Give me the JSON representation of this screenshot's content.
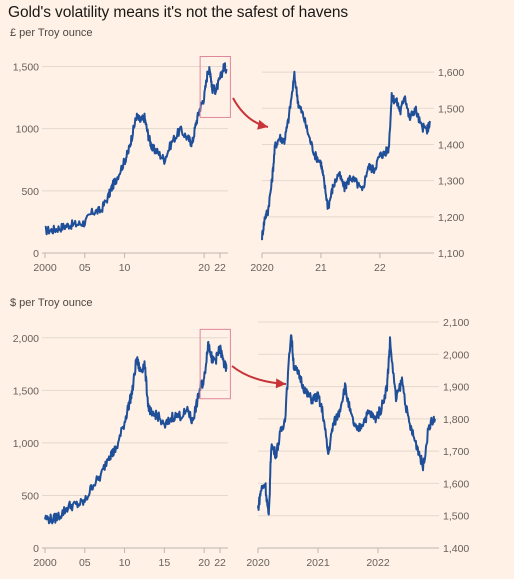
{
  "title": "Gold's volatility means it's not the safest of havens",
  "sections": [
    {
      "unit_label": "£ per Troy ounce"
    },
    {
      "unit_label": "$ per Troy ounce"
    }
  ],
  "colors": {
    "background": "#fff1e5",
    "line": "#1f4f99",
    "highlight_box": "#e0879a",
    "arrow": "#c8343a",
    "grid": "#e3d9cf",
    "axis": "#bfb6ad"
  },
  "chart_data": [
    {
      "type": "line",
      "panel": "top-left",
      "ylim": [
        0,
        1600
      ],
      "yticks": [
        0,
        500,
        1000,
        1500
      ],
      "ytick_labels": [
        "0",
        "500",
        "1000",
        "1,500"
      ],
      "xlim": [
        2000,
        2023
      ],
      "xticks": [
        2000,
        2005,
        2010,
        2020,
        2022
      ],
      "xtick_labels": [
        "2000",
        "05",
        "10",
        "20",
        "22"
      ],
      "highlight": {
        "x": [
          2020,
          2022.8
        ],
        "y": [
          1090,
          1580
        ]
      },
      "series": [
        {
          "x": [
            2000,
            2001,
            2002,
            2003,
            2004,
            2005,
            2006,
            2007,
            2008,
            2008.5,
            2009,
            2010,
            2010.5,
            2011,
            2011.5,
            2012,
            2012.5,
            2013,
            2013.5,
            2014,
            2015,
            2016,
            2017,
            2018,
            2018.5,
            2019,
            2019.5,
            2020,
            2020.5,
            2020.8,
            2021,
            2021.5,
            2022,
            2022.5,
            2022.8
          ],
          "values": [
            180,
            185,
            205,
            225,
            230,
            245,
            330,
            340,
            460,
            540,
            600,
            740,
            820,
            960,
            1100,
            1060,
            1090,
            940,
            840,
            820,
            750,
            900,
            990,
            920,
            880,
            1050,
            1170,
            1250,
            1480,
            1450,
            1320,
            1310,
            1400,
            1500,
            1480
          ]
        }
      ]
    },
    {
      "type": "line",
      "panel": "top-right",
      "ylim": [
        1100,
        1650
      ],
      "yticks": [
        1100,
        1200,
        1300,
        1400,
        1500,
        1600
      ],
      "ytick_labels": [
        "1,100",
        "1,200",
        "1,300",
        "1,400",
        "1,500",
        "1,600"
      ],
      "xlim": [
        2020,
        2022.85
      ],
      "xticks": [
        2020,
        2021,
        2022
      ],
      "xtick_labels": [
        "2020",
        "21",
        "22"
      ],
      "series": [
        {
          "x": [
            2020,
            2020.05,
            2020.1,
            2020.17,
            2020.22,
            2020.3,
            2020.38,
            2020.45,
            2020.55,
            2020.62,
            2020.7,
            2020.8,
            2020.9,
            2021,
            2021.05,
            2021.12,
            2021.2,
            2021.3,
            2021.4,
            2021.5,
            2021.6,
            2021.7,
            2021.8,
            2021.9,
            2022,
            2022.08,
            2022.15,
            2022.2,
            2022.28,
            2022.35,
            2022.42,
            2022.5,
            2022.6,
            2022.7,
            2022.8,
            2022.85
          ],
          "values": [
            1145,
            1200,
            1215,
            1300,
            1395,
            1420,
            1410,
            1470,
            1590,
            1510,
            1480,
            1420,
            1370,
            1350,
            1300,
            1225,
            1280,
            1320,
            1280,
            1310,
            1295,
            1270,
            1340,
            1330,
            1370,
            1375,
            1390,
            1530,
            1520,
            1490,
            1540,
            1470,
            1500,
            1450,
            1440,
            1460
          ]
        }
      ]
    },
    {
      "type": "line",
      "panel": "bottom-left",
      "ylim": [
        0,
        2150
      ],
      "yticks": [
        0,
        500,
        1000,
        1500,
        2000
      ],
      "ytick_labels": [
        "0",
        "500",
        "1,000",
        "1,500",
        "2,000"
      ],
      "xlim": [
        2000,
        2023
      ],
      "xticks": [
        2000,
        2005,
        2010,
        2015,
        2020,
        2022
      ],
      "xtick_labels": [
        "2000",
        "05",
        "10",
        "15",
        "20",
        "22"
      ],
      "highlight": {
        "x": [
          2020,
          2022.8
        ],
        "y": [
          1420,
          2080
        ]
      },
      "series": [
        {
          "x": [
            2000,
            2001,
            2002,
            2003,
            2004,
            2005,
            2006,
            2007,
            2008,
            2008.5,
            2009,
            2010,
            2010.5,
            2011,
            2011.5,
            2012,
            2012.5,
            2013,
            2013.5,
            2014,
            2015,
            2016,
            2017,
            2018,
            2018.5,
            2019,
            2019.5,
            2020,
            2020.5,
            2020.8,
            2021,
            2021.5,
            2022,
            2022.5,
            2022.8
          ],
          "values": [
            285,
            270,
            320,
            400,
            410,
            440,
            600,
            680,
            880,
            900,
            950,
            1200,
            1350,
            1500,
            1800,
            1680,
            1750,
            1350,
            1250,
            1280,
            1150,
            1250,
            1260,
            1300,
            1200,
            1350,
            1520,
            1600,
            1950,
            1880,
            1780,
            1800,
            1900,
            1750,
            1700
          ]
        }
      ]
    },
    {
      "type": "line",
      "panel": "bottom-right",
      "ylim": [
        1400,
        2100
      ],
      "yticks": [
        1400,
        1500,
        1600,
        1700,
        1800,
        1900,
        2000,
        2100
      ],
      "ytick_labels": [
        "1,400",
        "1,500",
        "1,600",
        "1,700",
        "1,800",
        "1,900",
        "2,000",
        "2,100"
      ],
      "xlim": [
        2020,
        2022.95
      ],
      "xticks": [
        2020,
        2021,
        2022
      ],
      "xtick_labels": [
        "2020",
        "2021",
        "2022"
      ],
      "series": [
        {
          "x": [
            2020,
            2020.05,
            2020.12,
            2020.18,
            2020.22,
            2020.3,
            2020.38,
            2020.45,
            2020.55,
            2020.6,
            2020.7,
            2020.8,
            2020.9,
            2021,
            2021.08,
            2021.17,
            2021.25,
            2021.35,
            2021.45,
            2021.55,
            2021.65,
            2021.75,
            2021.85,
            2021.95,
            2022.05,
            2022.15,
            2022.2,
            2022.3,
            2022.4,
            2022.5,
            2022.6,
            2022.68,
            2022.75,
            2022.85,
            2022.95
          ],
          "values": [
            1520,
            1580,
            1600,
            1490,
            1720,
            1690,
            1760,
            1800,
            2070,
            1960,
            1930,
            1880,
            1860,
            1870,
            1820,
            1690,
            1780,
            1820,
            1900,
            1810,
            1760,
            1790,
            1820,
            1800,
            1830,
            1900,
            2040,
            1860,
            1920,
            1800,
            1740,
            1700,
            1650,
            1780,
            1800
          ]
        }
      ]
    }
  ]
}
